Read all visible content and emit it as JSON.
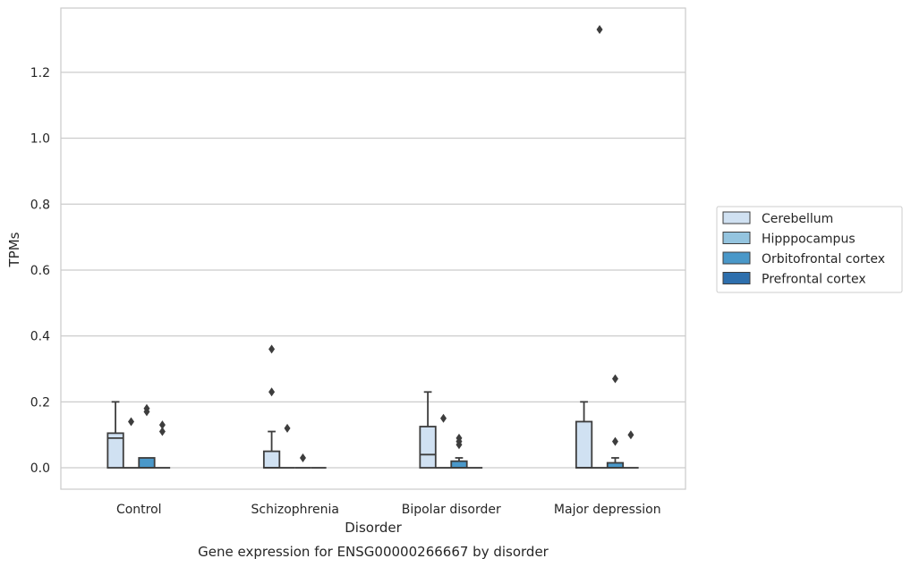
{
  "chart_data": {
    "type": "box",
    "title": "Gene expression for ENSG00000266667 by disorder",
    "xlabel": "Disorder",
    "ylabel": "TPMs",
    "ylim": [
      -0.065,
      1.395
    ],
    "yticks": [
      0.0,
      0.2,
      0.4,
      0.6,
      0.8,
      1.0,
      1.2
    ],
    "ytick_labels": [
      "0.0",
      "0.2",
      "0.4",
      "0.6",
      "0.8",
      "1.0",
      "1.2"
    ],
    "grid": "horizontal",
    "legend_position": "right",
    "categories": [
      "Control",
      "Schizophrenia",
      "Bipolar disorder",
      "Major depression"
    ],
    "series": [
      {
        "name": "Cerebellum",
        "color": "#d0e1f2",
        "boxes": [
          {
            "q1": 0.0,
            "median": 0.09,
            "q3": 0.105,
            "whisker_low": 0.0,
            "whisker_high": 0.2,
            "outliers": []
          },
          {
            "q1": 0.0,
            "median": 0.0,
            "q3": 0.05,
            "whisker_low": 0.0,
            "whisker_high": 0.11,
            "outliers": [
              0.23,
              0.36
            ]
          },
          {
            "q1": 0.0,
            "median": 0.04,
            "q3": 0.125,
            "whisker_low": 0.0,
            "whisker_high": 0.23,
            "outliers": []
          },
          {
            "q1": 0.0,
            "median": 0.0,
            "q3": 0.14,
            "whisker_low": 0.0,
            "whisker_high": 0.2,
            "outliers": []
          }
        ]
      },
      {
        "name": "Hipppocampus",
        "color": "#94c4df",
        "boxes": [
          {
            "q1": 0.0,
            "median": 0.0,
            "q3": 0.0,
            "whisker_low": 0.0,
            "whisker_high": 0.0,
            "outliers": [
              0.14
            ]
          },
          {
            "q1": 0.0,
            "median": 0.0,
            "q3": 0.0,
            "whisker_low": 0.0,
            "whisker_high": 0.0,
            "outliers": [
              0.12
            ]
          },
          {
            "q1": 0.0,
            "median": 0.0,
            "q3": 0.0,
            "whisker_low": 0.0,
            "whisker_high": 0.0,
            "outliers": [
              0.15
            ]
          },
          {
            "q1": 0.0,
            "median": 0.0,
            "q3": 0.0,
            "whisker_low": 0.0,
            "whisker_high": 0.0,
            "outliers": [
              1.33
            ]
          }
        ]
      },
      {
        "name": "Orbitofrontal cortex",
        "color": "#4a98c9",
        "boxes": [
          {
            "q1": 0.0,
            "median": 0.0,
            "q3": 0.03,
            "whisker_low": 0.0,
            "whisker_high": 0.03,
            "outliers": [
              0.17,
              0.18
            ]
          },
          {
            "q1": 0.0,
            "median": 0.0,
            "q3": 0.0,
            "whisker_low": 0.0,
            "whisker_high": 0.0,
            "outliers": [
              0.03
            ]
          },
          {
            "q1": 0.0,
            "median": 0.0,
            "q3": 0.02,
            "whisker_low": 0.0,
            "whisker_high": 0.03,
            "outliers": [
              0.07,
              0.08,
              0.09
            ]
          },
          {
            "q1": 0.0,
            "median": 0.0,
            "q3": 0.015,
            "whisker_low": 0.0,
            "whisker_high": 0.03,
            "outliers": [
              0.08,
              0.27
            ]
          }
        ]
      },
      {
        "name": "Prefrontal cortex",
        "color": "#2e6fad",
        "boxes": [
          {
            "q1": 0.0,
            "median": 0.0,
            "q3": 0.0,
            "whisker_low": 0.0,
            "whisker_high": 0.0,
            "outliers": [
              0.11,
              0.13
            ]
          },
          {
            "q1": 0.0,
            "median": 0.0,
            "q3": 0.0,
            "whisker_low": 0.0,
            "whisker_high": 0.0,
            "outliers": []
          },
          {
            "q1": 0.0,
            "median": 0.0,
            "q3": 0.0,
            "whisker_low": 0.0,
            "whisker_high": 0.0,
            "outliers": []
          },
          {
            "q1": 0.0,
            "median": 0.0,
            "q3": 0.0,
            "whisker_low": 0.0,
            "whisker_high": 0.0,
            "outliers": [
              0.1
            ]
          }
        ]
      }
    ]
  }
}
